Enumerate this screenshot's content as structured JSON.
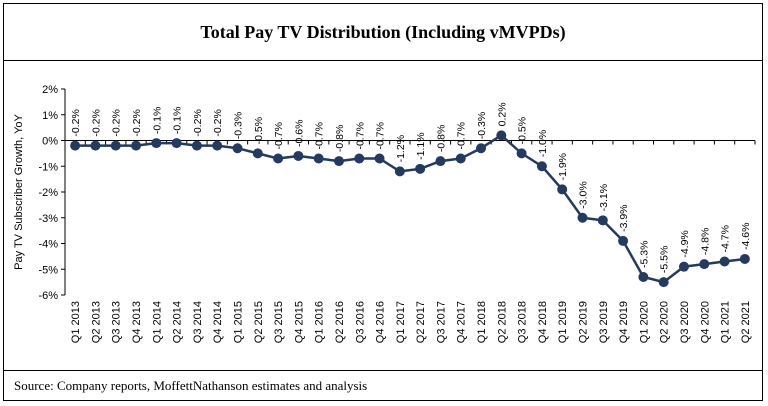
{
  "title": "Total Pay TV Distribution (Including vMVPDs)",
  "source": "Source: Company reports, MoffettNathanson estimates and analysis",
  "chart_data": {
    "type": "line",
    "title": "Total Pay TV Distribution (Including vMVPDs)",
    "ylabel": "Pay TV Subscriber Growth, YoY",
    "xlabel": "",
    "ylim": [
      -6,
      2
    ],
    "yticks": [
      "2%",
      "1%",
      "0%",
      "-1%",
      "-2%",
      "-3%",
      "-4%",
      "-5%",
      "-6%"
    ],
    "grid": false,
    "legend": "none",
    "color": "#243a5e",
    "categories": [
      "Q1 2013",
      "Q2 2013",
      "Q3 2013",
      "Q4 2013",
      "Q1 2014",
      "Q2 2014",
      "Q3 2014",
      "Q4 2014",
      "Q1 2015",
      "Q2 2015",
      "Q3 2015",
      "Q4 2015",
      "Q1 2016",
      "Q2 2016",
      "Q3 2016",
      "Q4 2016",
      "Q1 2017",
      "Q2 2017",
      "Q3 2017",
      "Q4 2017",
      "Q1 2018",
      "Q2 2018",
      "Q3 2018",
      "Q4 2018",
      "Q1 2019",
      "Q2 2019",
      "Q3 2019",
      "Q4 2019",
      "Q1 2020",
      "Q2 2020",
      "Q3 2020",
      "Q4 2020",
      "Q1 2021",
      "Q2 2021"
    ],
    "values": [
      -0.2,
      -0.2,
      -0.2,
      -0.2,
      -0.1,
      -0.1,
      -0.2,
      -0.2,
      -0.3,
      -0.5,
      -0.7,
      -0.6,
      -0.7,
      -0.8,
      -0.7,
      -0.7,
      -1.2,
      -1.1,
      -0.8,
      -0.7,
      -0.3,
      0.2,
      -0.5,
      -1.0,
      -1.9,
      -3.0,
      -3.1,
      -3.9,
      -5.3,
      -5.5,
      -4.9,
      -4.8,
      -4.7,
      -4.6
    ],
    "labels": [
      "-0.2%",
      "-0.2%",
      "-0.2%",
      "-0.2%",
      "-0.1%",
      "-0.1%",
      "-0.2%",
      "-0.2%",
      "-0.3%",
      "-0.5%",
      "-0.7%",
      "-0.6%",
      "-0.7%",
      "-0.8%",
      "-0.7%",
      "-0.7%",
      "-1.2%",
      "-1.1%",
      "-0.8%",
      "-0.7%",
      "-0.3%",
      "0.2%",
      "-0.5%",
      "-1.0%",
      "-1.9%",
      "-3.0%",
      "-3.1%",
      "-3.9%",
      "-5.3%",
      "-5.5%",
      "-4.9%",
      "-4.8%",
      "-4.7%",
      "-4.6%"
    ]
  }
}
